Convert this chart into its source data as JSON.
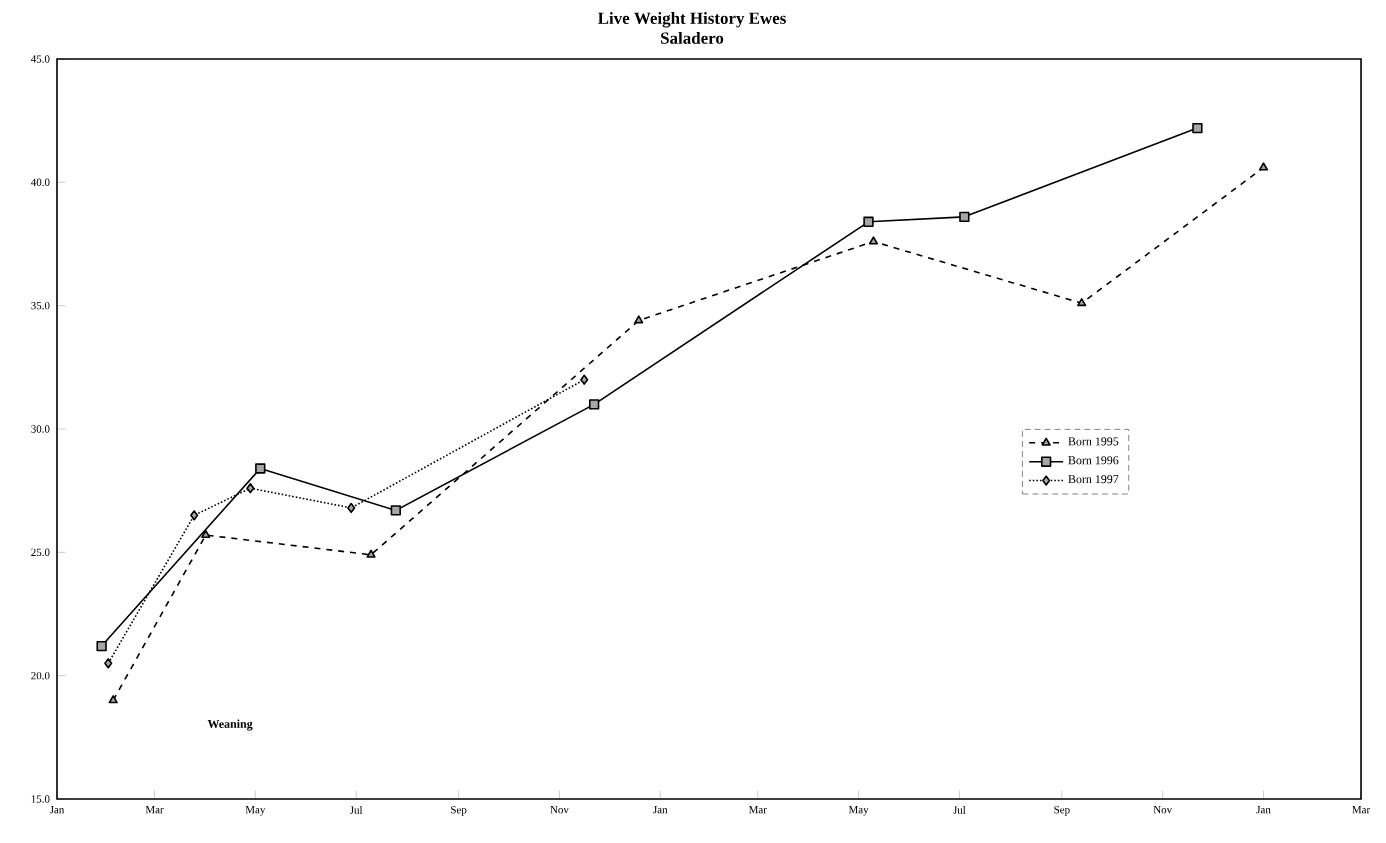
{
  "chart_data": {
    "type": "line",
    "title": "Live Weight History Ewes",
    "subtitle": "Saladero",
    "xlim": [
      "1997-01-01",
      "1999-03-01"
    ],
    "xticks": [
      {
        "value": "1997-01-01",
        "label": "Jan"
      },
      {
        "value": "1997-03-01",
        "label": "Mar"
      },
      {
        "value": "1997-05-01",
        "label": "May"
      },
      {
        "value": "1997-07-01",
        "label": "Jul"
      },
      {
        "value": "1997-09-01",
        "label": "Sep"
      },
      {
        "value": "1997-11-01",
        "label": "Nov"
      },
      {
        "value": "1998-01-01",
        "label": "Jan"
      },
      {
        "value": "1998-03-01",
        "label": "Mar"
      },
      {
        "value": "1998-05-01",
        "label": "May"
      },
      {
        "value": "1998-07-01",
        "label": "Jul"
      },
      {
        "value": "1998-09-01",
        "label": "Sep"
      },
      {
        "value": "1998-11-01",
        "label": "Nov"
      },
      {
        "value": "1999-01-01",
        "label": "Jan"
      },
      {
        "value": "1999-03-01",
        "label": "Mar"
      }
    ],
    "ylim": [
      15,
      45
    ],
    "yticks": [
      {
        "value": 15,
        "label": "15.0"
      },
      {
        "value": 20,
        "label": "20.0"
      },
      {
        "value": 25,
        "label": "25.0"
      },
      {
        "value": 30,
        "label": "30.0"
      },
      {
        "value": 35,
        "label": "35.0"
      },
      {
        "value": 40,
        "label": "40.0"
      },
      {
        "value": 45,
        "label": "45.0"
      }
    ],
    "grid": false,
    "legend": "right",
    "annotations": [
      "Weaning"
    ],
    "series": [
      {
        "name": "Born 1995",
        "color": "#000000",
        "marker": "triangle",
        "line_style": "dashed",
        "x": [
          "1997-02-04",
          "1997-04-01",
          "1997-07-10",
          "1997-12-19",
          "1998-05-10",
          "1998-09-13",
          "1999-01-01"
        ],
        "values": [
          19.0,
          25.7,
          24.9,
          34.4,
          37.6,
          35.1,
          40.6
        ]
      },
      {
        "name": "Born 1996",
        "color": "#000000",
        "marker": "square",
        "line_style": "solid",
        "x": [
          "1997-01-28",
          "1997-05-04",
          "1997-07-25",
          "1997-11-22",
          "1998-05-07",
          "1998-07-04",
          "1998-11-22"
        ],
        "values": [
          21.2,
          28.4,
          26.7,
          31.0,
          38.4,
          38.6,
          42.2
        ]
      },
      {
        "name": "Born 1997",
        "color": "#000000",
        "marker": "diamond",
        "line_style": "dotted",
        "x": [
          "1997-02-01",
          "1997-03-25",
          "1997-04-28",
          "1997-06-28",
          "1997-11-16"
        ],
        "values": [
          20.5,
          26.5,
          27.6,
          26.8,
          32.0
        ]
      }
    ]
  }
}
